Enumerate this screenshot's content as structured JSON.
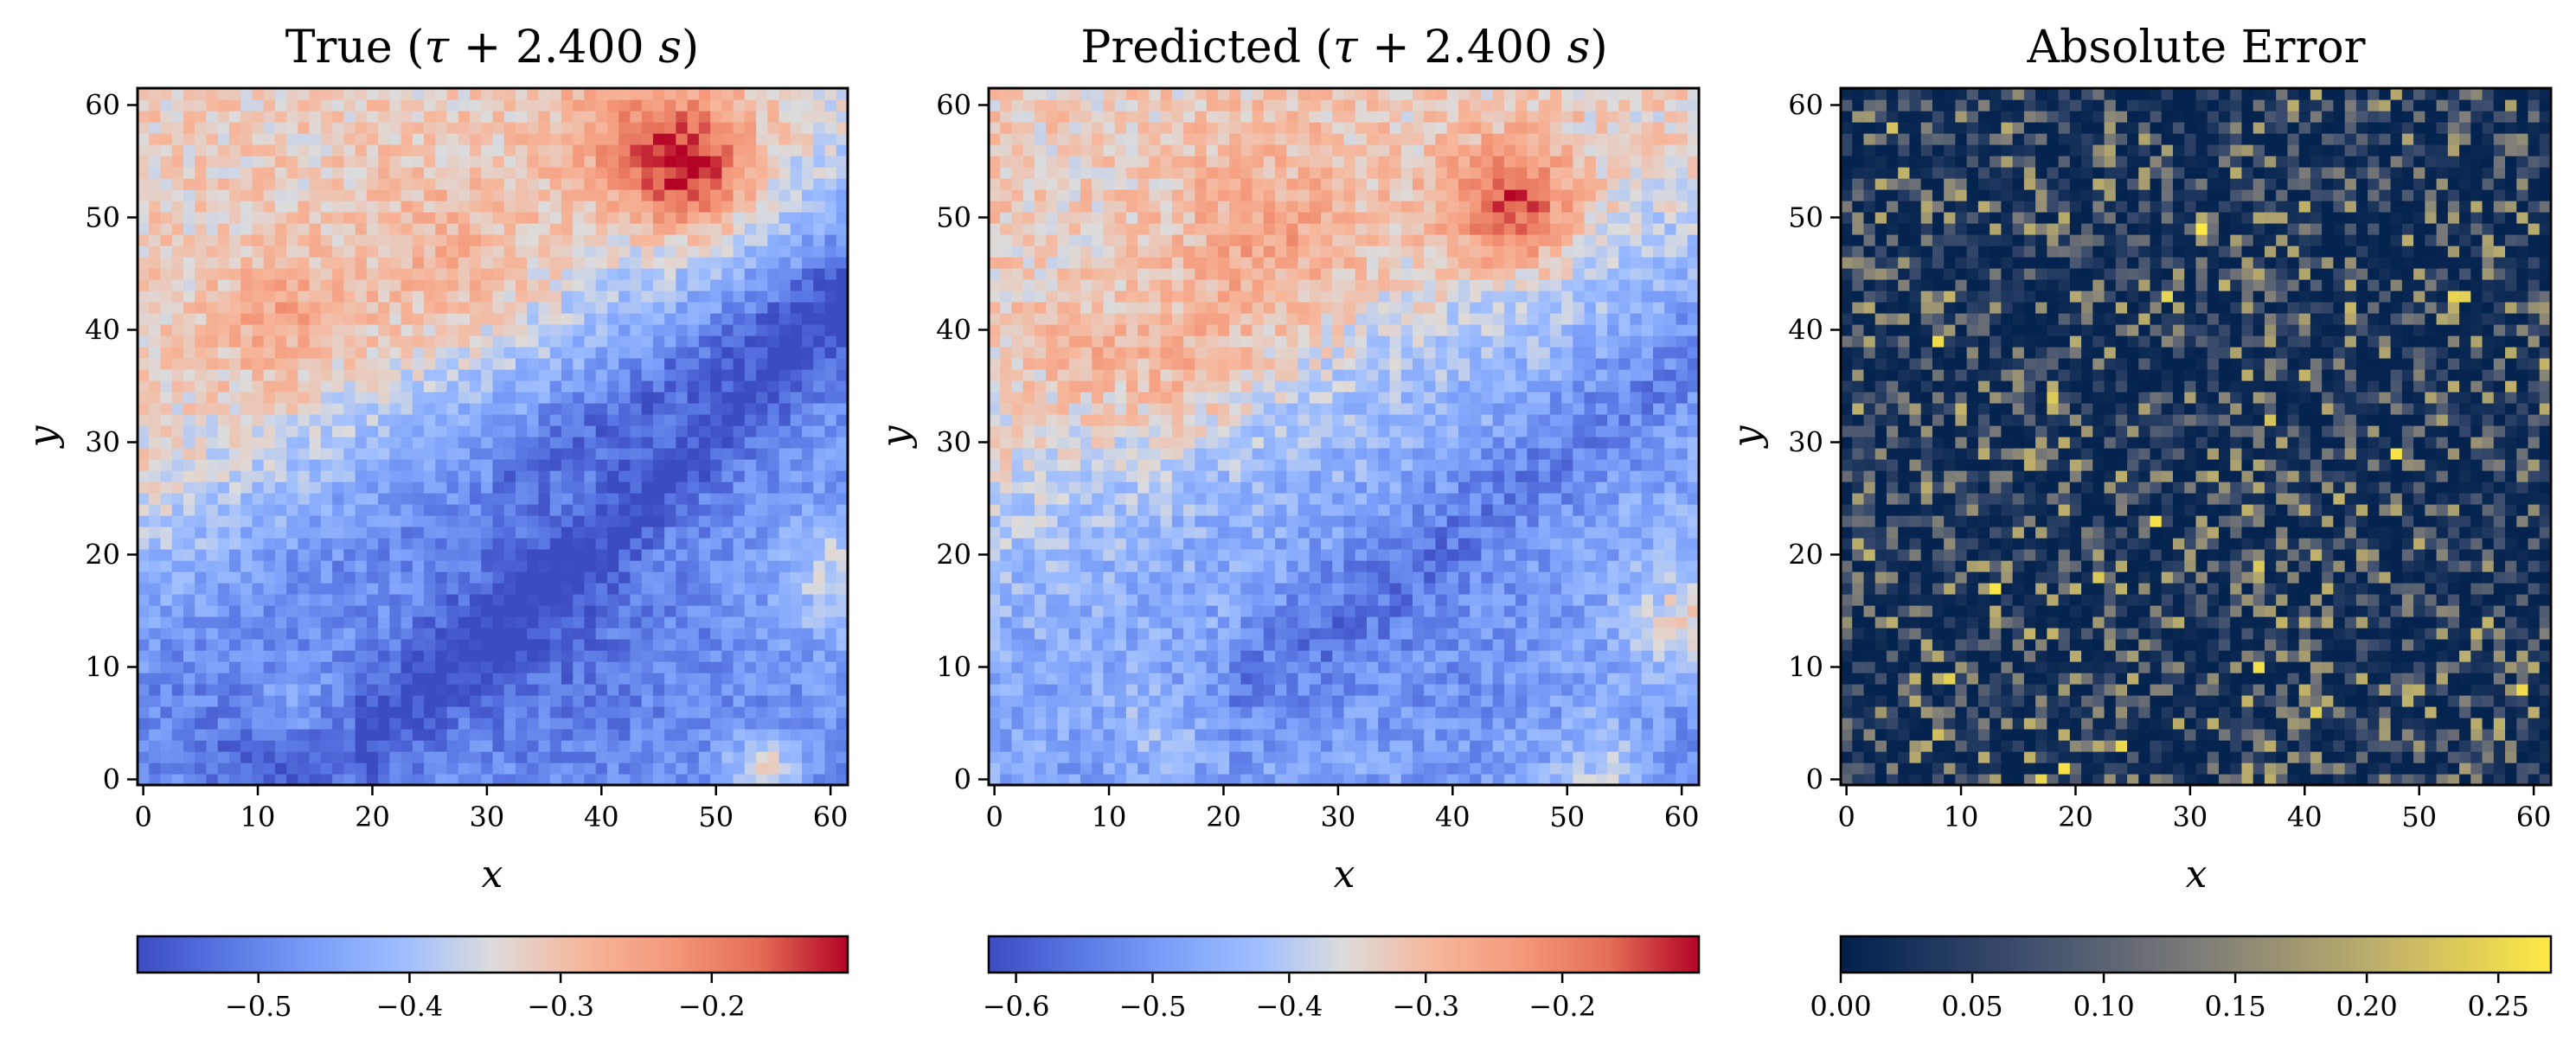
{
  "figure": {
    "panels": [
      {
        "title_prefix": "True (",
        "tau": "τ",
        "title_op": " + 2.400 ",
        "title_unit": "s",
        "title_suffix": ")"
      },
      {
        "title_prefix": "Predicted (",
        "tau": "τ",
        "title_op": " + 2.400 ",
        "title_unit": "s",
        "title_suffix": ")"
      },
      {
        "title_prefix": "Absolute Error",
        "tau": "",
        "title_op": "",
        "title_unit": "",
        "title_suffix": ""
      }
    ]
  },
  "chart_data": [
    {
      "type": "heatmap",
      "title": "True (τ + 2.400 s)",
      "xlabel": "x",
      "ylabel": "y",
      "xlim": [
        -0.5,
        61.5
      ],
      "ylim": [
        -0.5,
        61.5
      ],
      "grid_size": [
        62,
        62
      ],
      "xticks": [
        0,
        10,
        20,
        30,
        40,
        50,
        60
      ],
      "yticks": [
        0,
        10,
        20,
        30,
        40,
        50,
        60
      ],
      "colormap": "coolwarm",
      "colorbar": {
        "orientation": "horizontal",
        "placement": "below",
        "range": [
          -0.58,
          -0.11
        ],
        "ticks": [
          -0.5,
          -0.4,
          -0.3,
          -0.2
        ],
        "tick_labels": [
          "−0.5",
          "−0.4",
          "−0.3",
          "−0.2"
        ]
      },
      "grid": false
    },
    {
      "type": "heatmap",
      "title": "Predicted (τ + 2.400 s)",
      "xlabel": "x",
      "ylabel": "y",
      "xlim": [
        -0.5,
        61.5
      ],
      "ylim": [
        -0.5,
        61.5
      ],
      "grid_size": [
        62,
        62
      ],
      "xticks": [
        0,
        10,
        20,
        30,
        40,
        50,
        60
      ],
      "yticks": [
        0,
        10,
        20,
        30,
        40,
        50,
        60
      ],
      "colormap": "coolwarm",
      "colorbar": {
        "orientation": "horizontal",
        "placement": "below",
        "range": [
          -0.62,
          -0.1
        ],
        "ticks": [
          -0.6,
          -0.5,
          -0.4,
          -0.3,
          -0.2
        ],
        "tick_labels": [
          "−0.6",
          "−0.5",
          "−0.4",
          "−0.3",
          "−0.2"
        ]
      },
      "grid": false
    },
    {
      "type": "heatmap",
      "title": "Absolute Error",
      "xlabel": "x",
      "ylabel": "y",
      "xlim": [
        -0.5,
        61.5
      ],
      "ylim": [
        -0.5,
        61.5
      ],
      "grid_size": [
        62,
        62
      ],
      "xticks": [
        0,
        10,
        20,
        30,
        40,
        50,
        60
      ],
      "yticks": [
        0,
        10,
        20,
        30,
        40,
        50,
        60
      ],
      "colormap": "cividis",
      "colorbar": {
        "orientation": "horizontal",
        "placement": "below",
        "range": [
          0.0,
          0.27
        ],
        "ticks": [
          0.0,
          0.05,
          0.1,
          0.15,
          0.2,
          0.25
        ],
        "tick_labels": [
          "0.00",
          "0.05",
          "0.10",
          "0.15",
          "0.20",
          "0.25"
        ]
      },
      "grid": false
    }
  ]
}
